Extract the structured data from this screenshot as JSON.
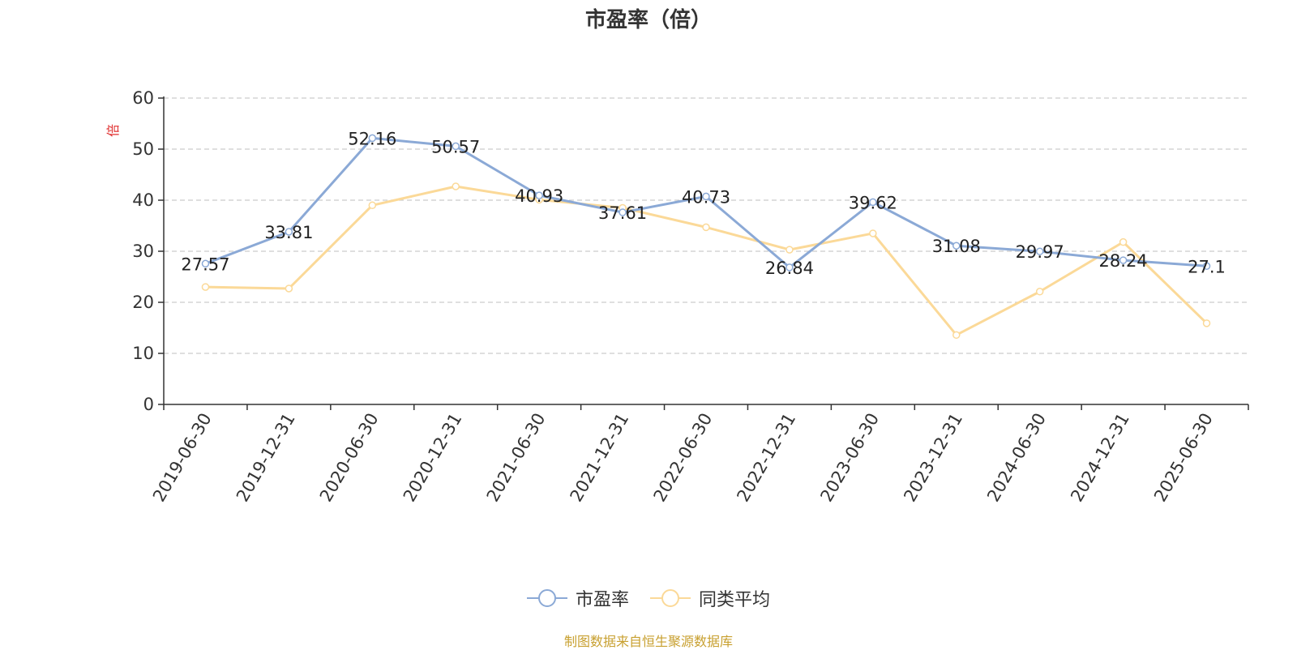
{
  "chart_data": {
    "type": "line",
    "title": "市盈率（倍）",
    "ylabel": "倍",
    "ylim": [
      0,
      60
    ],
    "yticks": [
      0,
      10,
      20,
      30,
      40,
      50,
      60
    ],
    "grid": true,
    "legend_position": "bottom-center",
    "categories": [
      "2019-06-30",
      "2019-12-31",
      "2020-06-30",
      "2020-12-31",
      "2021-06-30",
      "2021-12-31",
      "2022-06-30",
      "2022-12-31",
      "2023-06-30",
      "2023-12-31",
      "2024-06-30",
      "2024-12-31",
      "2025-06-30"
    ],
    "series": [
      {
        "name": "市盈率",
        "color": "#8ba9d6",
        "values": [
          27.57,
          33.81,
          52.16,
          50.57,
          40.93,
          37.61,
          40.73,
          26.84,
          39.62,
          31.08,
          29.97,
          28.24,
          27.1
        ],
        "labels": [
          "27.57",
          "33.81",
          "52.16",
          "50.57",
          "40.93",
          "37.61",
          "40.73",
          "26.84",
          "39.62",
          "31.08",
          "29.97",
          "28.24",
          "27.1"
        ]
      },
      {
        "name": "同类平均",
        "color": "#fbd998",
        "values": [
          23.0,
          22.7,
          39.0,
          42.7,
          40.1,
          38.5,
          34.7,
          30.3,
          33.5,
          13.6,
          22.1,
          31.8,
          15.9
        ]
      }
    ]
  },
  "source": {
    "text": "制图数据来自恒生聚源数据库",
    "color": "#c8a030"
  },
  "colors": {
    "axis": "#333333",
    "grid": "#cccccc",
    "ylabel": "#e03030"
  }
}
